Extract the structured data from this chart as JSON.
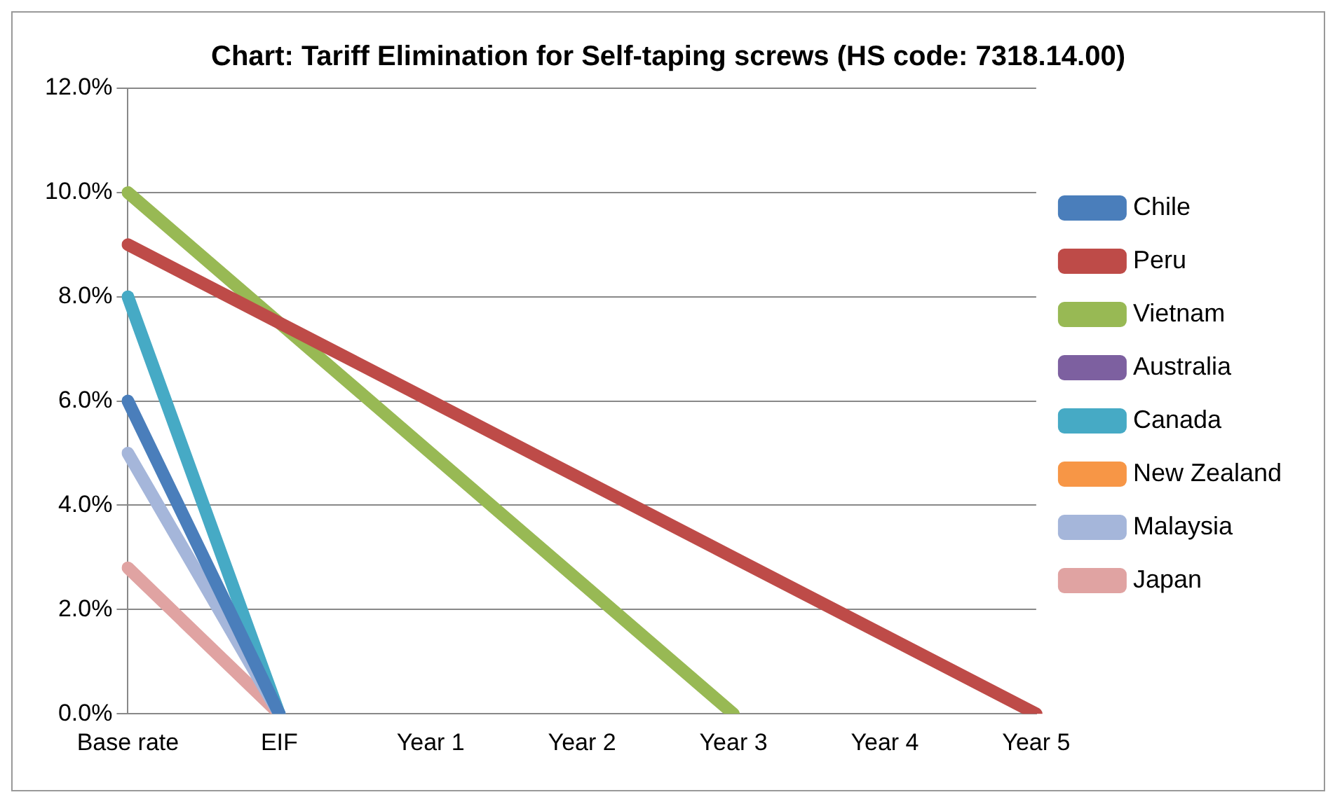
{
  "chart_data": {
    "type": "line",
    "title": "Chart: Tariff Elimination for Self-taping screws (HS code: 7318.14.00)",
    "categories": [
      "Base rate",
      "EIF",
      "Year 1",
      "Year 2",
      "Year 3",
      "Year 4",
      "Year 5"
    ],
    "series": [
      {
        "name": "Chile",
        "color": "#4a7ebb",
        "values": [
          6,
          0,
          null,
          null,
          null,
          null,
          null
        ]
      },
      {
        "name": "Peru",
        "color": "#be4b48",
        "values": [
          9,
          7.5,
          6,
          4.5,
          3,
          1.5,
          0
        ]
      },
      {
        "name": "Vietnam",
        "color": "#98b954",
        "values": [
          10,
          7.5,
          5,
          2.5,
          0,
          null,
          null
        ]
      },
      {
        "name": "Australia",
        "color": "#7d60a0",
        "values": [
          null,
          null,
          null,
          null,
          null,
          null,
          null
        ]
      },
      {
        "name": "Canada",
        "color": "#46aac5",
        "values": [
          8,
          0,
          null,
          null,
          null,
          null,
          null
        ]
      },
      {
        "name": "New Zealand",
        "color": "#f79646",
        "values": [
          null,
          null,
          null,
          null,
          null,
          null,
          null
        ]
      },
      {
        "name": "Malaysia",
        "color": "#a5b6da",
        "values": [
          5,
          0,
          null,
          null,
          null,
          null,
          null
        ]
      },
      {
        "name": "Japan",
        "color": "#e0a3a2",
        "values": [
          2.8,
          0,
          null,
          null,
          null,
          null,
          null
        ]
      }
    ],
    "ylim": [
      0,
      12
    ],
    "yticks": [
      {
        "value": 0,
        "label": "0.0%"
      },
      {
        "value": 2,
        "label": "2.0%"
      },
      {
        "value": 4,
        "label": "4.0%"
      },
      {
        "value": 6,
        "label": "6.0%"
      },
      {
        "value": 8,
        "label": "8.0%"
      },
      {
        "value": 10,
        "label": "10.0%"
      },
      {
        "value": 12,
        "label": "12.0%"
      }
    ],
    "grid": "y",
    "legend": "right",
    "marker": "none",
    "line_style": "solid"
  }
}
